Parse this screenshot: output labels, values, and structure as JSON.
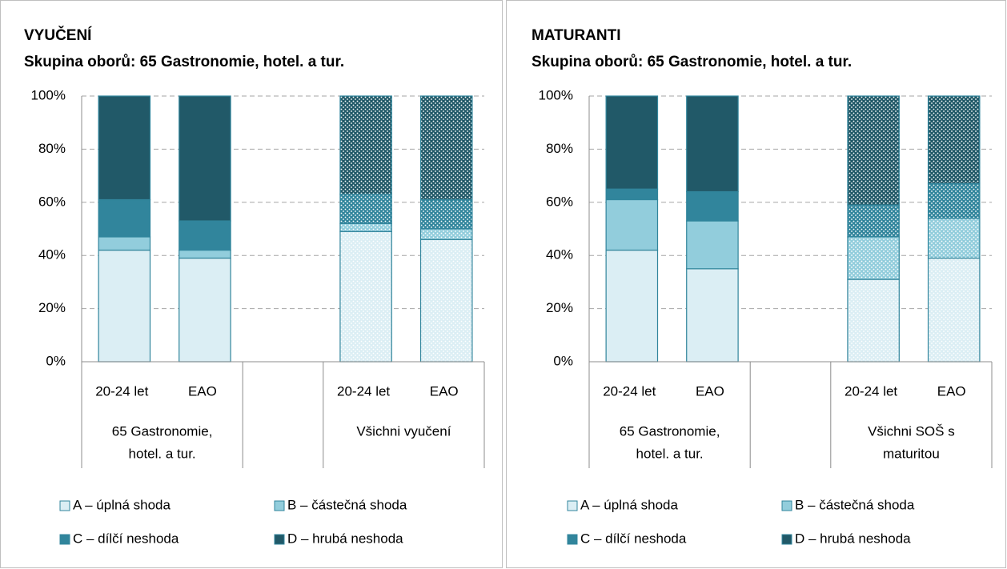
{
  "chart_data": [
    {
      "type": "bar",
      "stacked": true,
      "title": "VYUČENÍ",
      "subtitle": "Skupina oborů: 65 Gastronomie, hotel. a tur.",
      "categories": [
        "20-24 let",
        "EAO",
        null,
        "20-24 let",
        "EAO"
      ],
      "groups": [
        {
          "label_lines": [
            "65 Gastronomie,",
            "hotel. a tur."
          ]
        },
        {
          "label_lines": [
            "Všichni vyučení"
          ]
        }
      ],
      "patterned": [
        false,
        false,
        false,
        true,
        true
      ],
      "series": [
        {
          "name": "A – úplná shoda",
          "color": "#dbeef4",
          "values": [
            42,
            39,
            null,
            49,
            46
          ]
        },
        {
          "name": "B – částečná shoda",
          "color": "#92cddc",
          "values": [
            5,
            3,
            null,
            3,
            4
          ]
        },
        {
          "name": "C – dílčí neshoda",
          "color": "#31859c",
          "values": [
            14,
            11,
            null,
            11,
            11
          ]
        },
        {
          "name": "D – hrubá neshoda",
          "color": "#215968",
          "values": [
            39,
            47,
            null,
            37,
            39
          ]
        }
      ],
      "ylim": [
        0,
        100
      ],
      "yticks": [
        {
          "value": 0,
          "label": "0%"
        },
        {
          "value": 20,
          "label": "20%"
        },
        {
          "value": 40,
          "label": "40%"
        },
        {
          "value": 60,
          "label": "60%"
        },
        {
          "value": 80,
          "label": "80%"
        },
        {
          "value": 100,
          "label": "100%"
        }
      ],
      "grid": true
    },
    {
      "type": "bar",
      "stacked": true,
      "title": "MATURANTI",
      "subtitle": "Skupina oborů: 65 Gastronomie, hotel. a tur.",
      "categories": [
        "20-24 let",
        "EAO",
        null,
        "20-24 let",
        "EAO"
      ],
      "groups": [
        {
          "label_lines": [
            "65 Gastronomie,",
            "hotel. a tur."
          ]
        },
        {
          "label_lines": [
            "Všichni SOŠ s",
            "maturitou"
          ]
        }
      ],
      "patterned": [
        false,
        false,
        false,
        true,
        true
      ],
      "series": [
        {
          "name": "A – úplná shoda",
          "color": "#dbeef4",
          "values": [
            42,
            35,
            null,
            31,
            39
          ]
        },
        {
          "name": "B – částečná shoda",
          "color": "#92cddc",
          "values": [
            19,
            18,
            null,
            16,
            15
          ]
        },
        {
          "name": "C – dílčí neshoda",
          "color": "#31859c",
          "values": [
            4,
            11,
            null,
            12,
            13
          ]
        },
        {
          "name": "D – hrubá neshoda",
          "color": "#215968",
          "values": [
            35,
            36,
            null,
            41,
            33
          ]
        }
      ],
      "ylim": [
        0,
        100
      ],
      "yticks": [
        {
          "value": 0,
          "label": "0%"
        },
        {
          "value": 20,
          "label": "20%"
        },
        {
          "value": 40,
          "label": "40%"
        },
        {
          "value": 60,
          "label": "60%"
        },
        {
          "value": 80,
          "label": "80%"
        },
        {
          "value": 100,
          "label": "100%"
        }
      ],
      "grid": true
    }
  ]
}
